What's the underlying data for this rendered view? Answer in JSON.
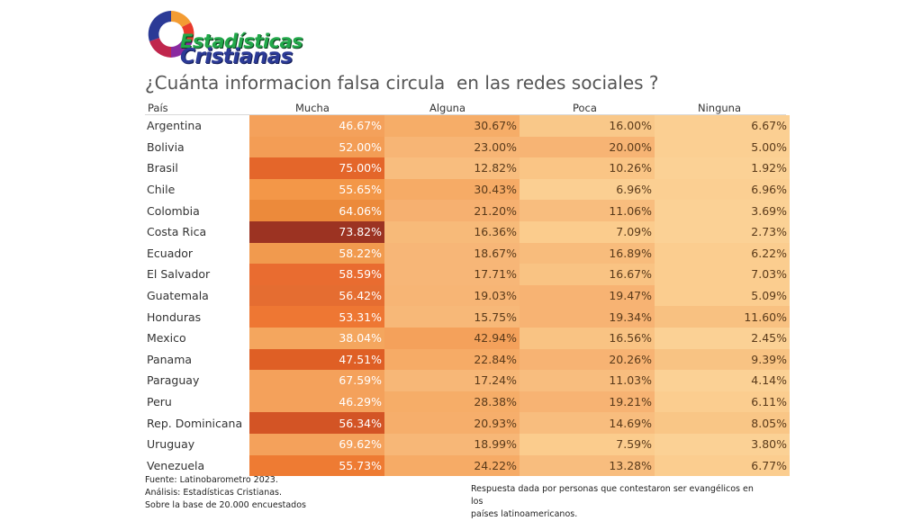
{
  "logo": {
    "line1": "Estadísticas",
    "line2": "Cristianas"
  },
  "chart_data": {
    "type": "table",
    "title": "¿Cuánta informacion falsa circula  en las redes sociales ?",
    "columns": [
      "País",
      "Mucha",
      "Alguna",
      "Poca",
      "Ninguna"
    ],
    "rows": [
      {
        "country": "Argentina",
        "values": [
          "46.67%",
          "30.67%",
          "16.00%",
          "6.67%"
        ]
      },
      {
        "country": "Bolivia",
        "values": [
          "52.00%",
          "23.00%",
          "20.00%",
          "5.00%"
        ]
      },
      {
        "country": "Brasil",
        "values": [
          "75.00%",
          "12.82%",
          "10.26%",
          "1.92%"
        ]
      },
      {
        "country": "Chile",
        "values": [
          "55.65%",
          "30.43%",
          "6.96%",
          "6.96%"
        ]
      },
      {
        "country": "Colombia",
        "values": [
          "64.06%",
          "21.20%",
          "11.06%",
          "3.69%"
        ]
      },
      {
        "country": "Costa Rica",
        "values": [
          "73.82%",
          "16.36%",
          "7.09%",
          "2.73%"
        ]
      },
      {
        "country": "Ecuador",
        "values": [
          "58.22%",
          "18.67%",
          "16.89%",
          "6.22%"
        ]
      },
      {
        "country": "El Salvador",
        "values": [
          "58.59%",
          "17.71%",
          "16.67%",
          "7.03%"
        ]
      },
      {
        "country": "Guatemala",
        "values": [
          "56.42%",
          "19.03%",
          "19.47%",
          "5.09%"
        ]
      },
      {
        "country": "Honduras",
        "values": [
          "53.31%",
          "15.75%",
          "19.34%",
          "11.60%"
        ]
      },
      {
        "country": "Mexico",
        "values": [
          "38.04%",
          "42.94%",
          "16.56%",
          "2.45%"
        ]
      },
      {
        "country": "Panama",
        "values": [
          "47.51%",
          "22.84%",
          "20.26%",
          "9.39%"
        ]
      },
      {
        "country": "Paraguay",
        "values": [
          "67.59%",
          "17.24%",
          "11.03%",
          "4.14%"
        ]
      },
      {
        "country": "Peru",
        "values": [
          "46.29%",
          "28.38%",
          "19.21%",
          "6.11%"
        ]
      },
      {
        "country": "Rep. Dominicana",
        "values": [
          "56.34%",
          "20.93%",
          "14.69%",
          "8.05%"
        ]
      },
      {
        "country": "Uruguay",
        "values": [
          "69.62%",
          "18.99%",
          "7.59%",
          "3.80%"
        ]
      },
      {
        "country": "Venezuela",
        "values": [
          "55.73%",
          "24.22%",
          "13.28%",
          "6.77%"
        ]
      }
    ],
    "cell_colors": [
      [
        "#f4a15b",
        "#f6ad68",
        "#f9c889",
        "#fbcf92"
      ],
      [
        "#f39d55",
        "#f7b575",
        "#f7b474",
        "#fbcf92"
      ],
      [
        "#e4662a",
        "#f8bd7e",
        "#fac585",
        "#fbd195"
      ],
      [
        "#f39748",
        "#f6ab66",
        "#fbcf92",
        "#fbcf92"
      ],
      [
        "#ec8a3b",
        "#f6b070",
        "#f8bd7e",
        "#fbd195"
      ],
      [
        "#9c3322",
        "#f7ba79",
        "#fbcc8d",
        "#fbd195"
      ],
      [
        "#f19a4e",
        "#f7b677",
        "#f8bc7c",
        "#fbcd8f"
      ],
      [
        "#e96c30",
        "#f7b677",
        "#f9c383",
        "#fbcd8f"
      ],
      [
        "#e56d31",
        "#f7b575",
        "#f7b373",
        "#fbcd8f"
      ],
      [
        "#ee7733",
        "#f7b878",
        "#f7b373",
        "#f8c181"
      ],
      [
        "#f4a65e",
        "#f4a15b",
        "#f9c383",
        "#fbd195"
      ],
      [
        "#df5f25",
        "#f6ab66",
        "#f7b373",
        "#f8c383"
      ],
      [
        "#f4a15b",
        "#f7b777",
        "#f8bd7e",
        "#fbd195"
      ],
      [
        "#f4a15b",
        "#f6ad68",
        "#f7b373",
        "#fbcd8f"
      ],
      [
        "#d35425",
        "#f6ae6b",
        "#f8bd7e",
        "#f9c686"
      ],
      [
        "#f4a15b",
        "#f7b777",
        "#fbcc8d",
        "#fbd195"
      ],
      [
        "#ee7b33",
        "#f6ab66",
        "#f8bd7e",
        "#fbcd8f"
      ]
    ]
  },
  "footer": {
    "left": [
      "Fuente: Latinobarometro 2023.",
      "Análisis: Estadísticas Cristianas.",
      "Sobre la base de 20.000 encuestados"
    ],
    "right": [
      "Respuesta dada por personas que contestaron ser evangélicos en los",
      "países latinoamericanos."
    ]
  }
}
